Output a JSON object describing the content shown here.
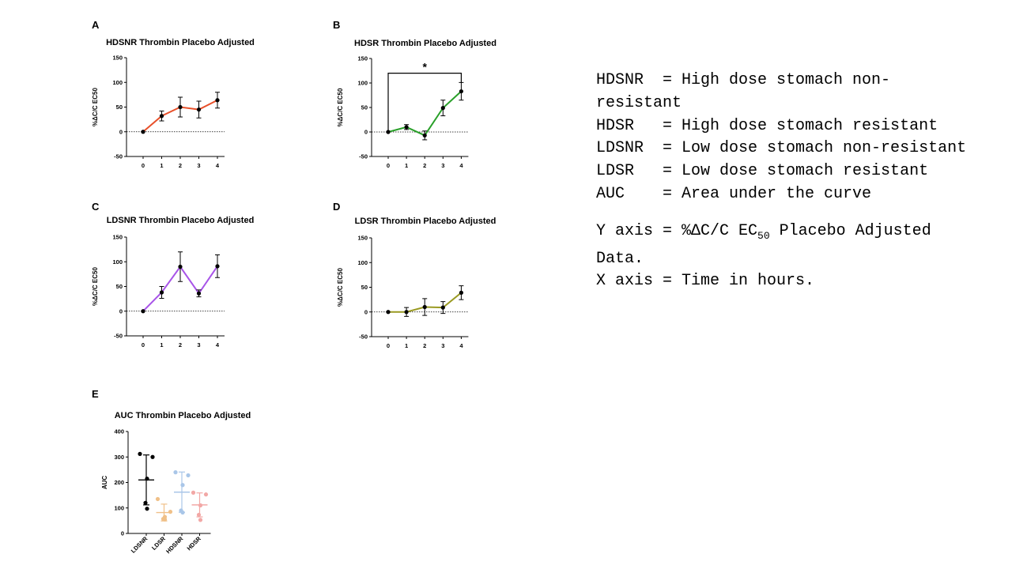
{
  "panels": [
    {
      "letter": "A",
      "chart_data": {
        "type": "line",
        "title": "HDSNR Thrombin Placebo Adjusted",
        "ylabel": "%ΔC/C EC50",
        "xlabel": "",
        "x": [
          0,
          1,
          2,
          3,
          4
        ],
        "y": [
          0,
          32,
          50,
          45,
          64
        ],
        "error": [
          0,
          10,
          20,
          17,
          16
        ],
        "ylim": [
          -50,
          150
        ],
        "yticks": [
          -50,
          0,
          50,
          100,
          150
        ],
        "color": "#e8502a",
        "significance": null
      }
    },
    {
      "letter": "B",
      "chart_data": {
        "type": "line",
        "title": "HDSR Thrombin Placebo Adjusted",
        "ylabel": "%ΔC/C EC50",
        "xlabel": "",
        "x": [
          0,
          1,
          2,
          3,
          4
        ],
        "y": [
          0,
          10,
          -7,
          49,
          83
        ],
        "error": [
          0,
          5,
          9,
          16,
          18
        ],
        "ylim": [
          -50,
          150
        ],
        "yticks": [
          -50,
          0,
          50,
          100,
          150
        ],
        "color": "#2aa02a",
        "significance": {
          "from_x": 0,
          "to_x": 4,
          "at_y": 120,
          "label": "*"
        }
      }
    },
    {
      "letter": "C",
      "chart_data": {
        "type": "line",
        "title": "LDSNR Thrombin Placebo Adjusted",
        "ylabel": "%ΔC/C EC50",
        "xlabel": "",
        "x": [
          0,
          1,
          2,
          3,
          4
        ],
        "y": [
          0,
          38,
          90,
          36,
          91
        ],
        "error": [
          0,
          12,
          30,
          7,
          23
        ],
        "ylim": [
          -50,
          150
        ],
        "yticks": [
          -50,
          0,
          50,
          100,
          150
        ],
        "color": "#a855e8",
        "significance": null
      }
    },
    {
      "letter": "D",
      "chart_data": {
        "type": "line",
        "title": "LDSR Thrombin Placebo Adjusted",
        "ylabel": "%ΔC/C EC50",
        "xlabel": "",
        "x": [
          0,
          1,
          2,
          3,
          4
        ],
        "y": [
          0,
          0,
          10,
          9,
          39
        ],
        "error": [
          0,
          9,
          17,
          12,
          14
        ],
        "ylim": [
          -50,
          150
        ],
        "yticks": [
          -50,
          0,
          50,
          100,
          150
        ],
        "color": "#9a9a22",
        "significance": null
      }
    },
    {
      "letter": "E",
      "chart_data": {
        "type": "scatter",
        "title": "AUC Thrombin Placebo Adjusted",
        "ylabel": "AUC",
        "xlabel": "",
        "categories": [
          "LDSNR",
          "LDSR",
          "HDSNR",
          "HDSR"
        ],
        "points": [
          [
            312,
            300,
            215,
            120,
            97
          ],
          [
            135,
            85,
            65,
            57,
            55
          ],
          [
            240,
            228,
            190,
            90,
            82
          ],
          [
            160,
            153,
            110,
            73,
            53
          ]
        ],
        "mean": [
          210,
          82,
          162,
          112
        ],
        "sd": [
          98,
          33,
          79,
          47
        ],
        "ylim": [
          0,
          400
        ],
        "yticks": [
          0,
          100,
          200,
          300,
          400
        ],
        "colors": [
          "#000000",
          "#f0c088",
          "#a9c6e8",
          "#f2a8a6"
        ]
      }
    }
  ],
  "legend": {
    "lines": [
      "HDSNR  = High dose stomach non-resistant",
      "HDSR   = High dose stomach resistant",
      "LDSNR  = Low dose stomach non-resistant",
      "LDSR   = Low dose stomach resistant",
      "AUC    = Area under the curve"
    ],
    "y_axis_prefix": "Y axis = %ΔC/C EC",
    "y_axis_sub": "50",
    "y_axis_suffix": " Placebo Adjusted Data.",
    "x_axis": "X axis = Time in hours."
  }
}
